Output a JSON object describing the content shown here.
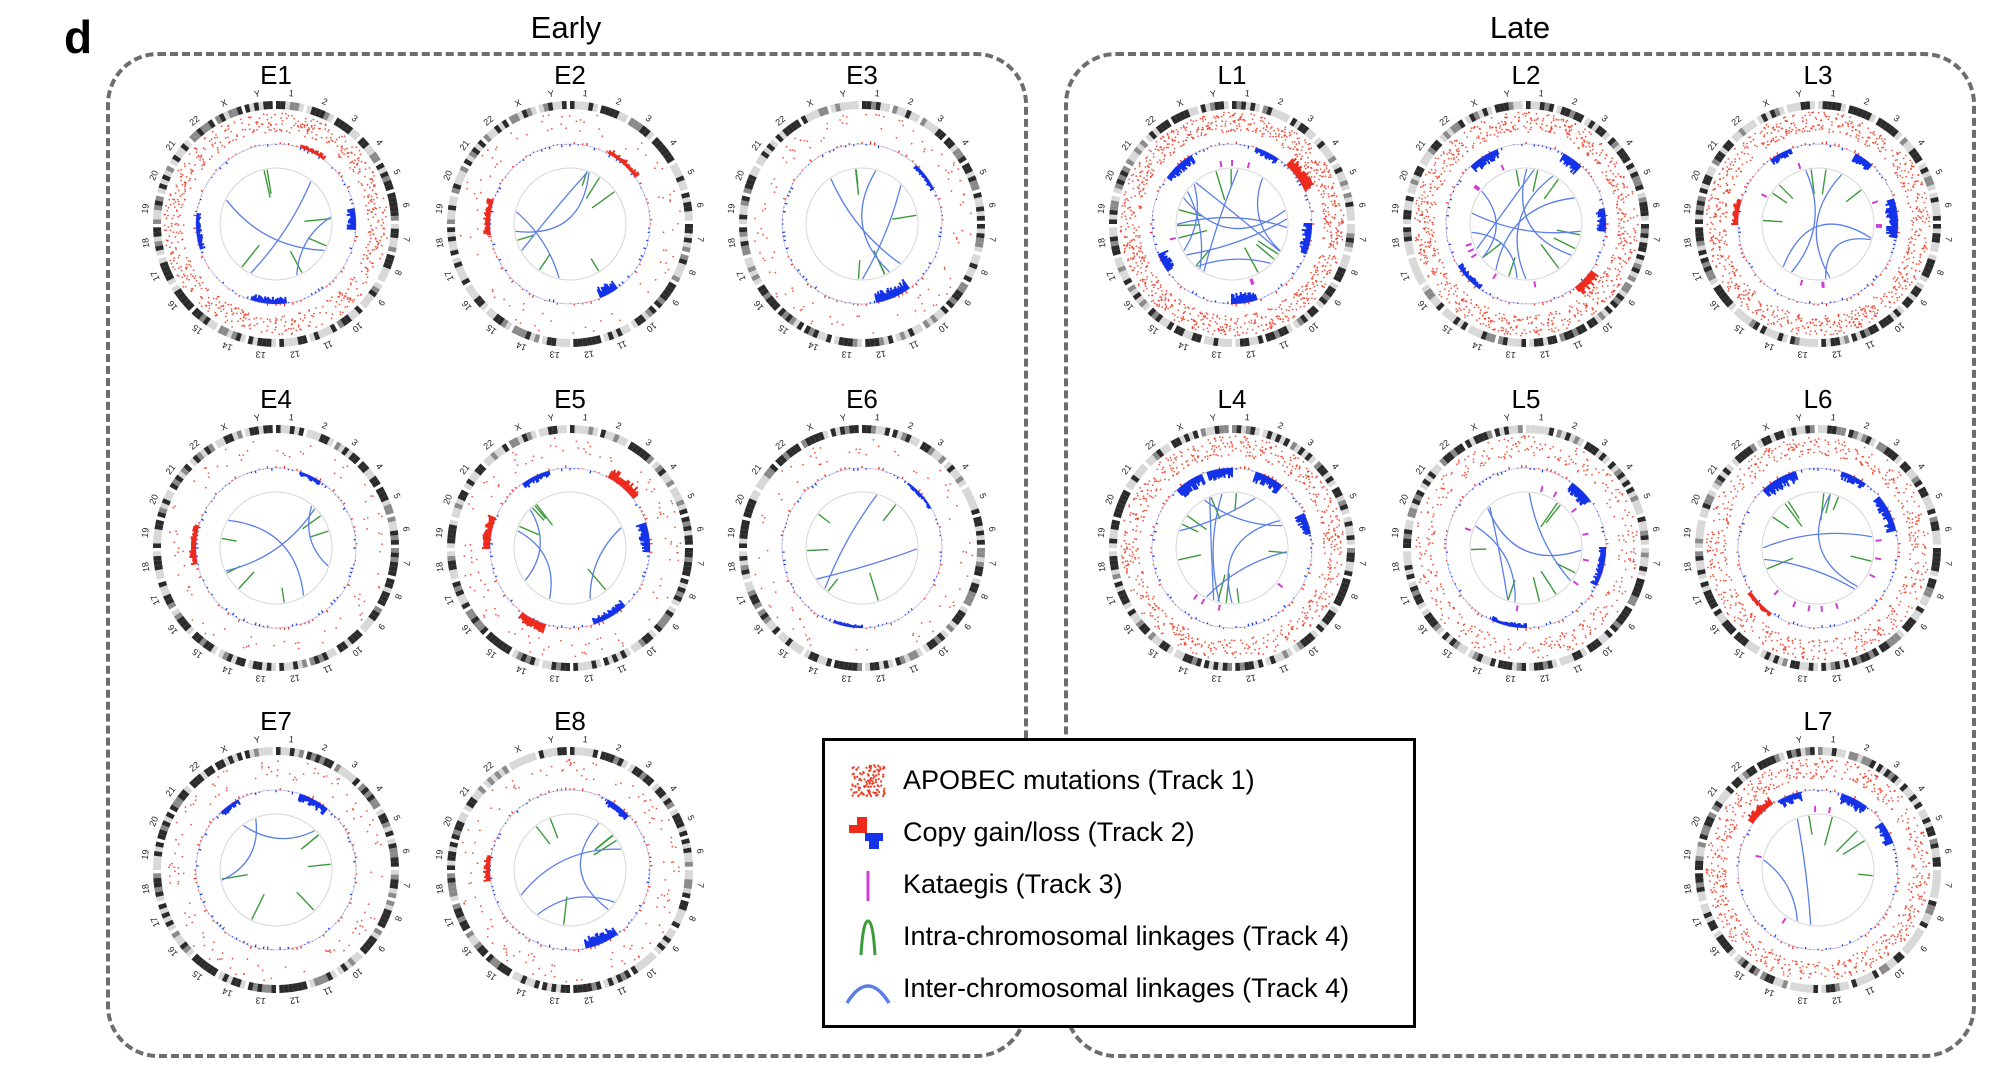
{
  "figure": {
    "panel_letter": "d",
    "groups": [
      {
        "title": "Early",
        "plots": [
          {
            "label": "E1",
            "density": 0.7,
            "cnv": [
              [
                5,
                "gain",
                0.4
              ],
              [
                22,
                "loss",
                0.8
              ],
              [
                48,
                "loss",
                0.6
              ],
              [
                70,
                "loss",
                0.5
              ]
            ],
            "kataegis": 0,
            "intra": 6,
            "inter": 3
          },
          {
            "label": "E2",
            "density": 0.05,
            "cnv": [
              [
                8,
                "gain",
                0.5
              ],
              [
                40,
                "loss",
                1.0
              ],
              [
                73,
                "gain",
                0.6
              ]
            ],
            "kataegis": 0,
            "intra": 6,
            "inter": 3
          },
          {
            "label": "E3",
            "density": 0.08,
            "cnv": [
              [
                12,
                "loss",
                0.4
              ],
              [
                40,
                "loss",
                1.0
              ]
            ],
            "kataegis": 0,
            "intra": 6,
            "inter": 3
          },
          {
            "label": "E4",
            "density": 0.05,
            "cnv": [
              [
                5,
                "loss",
                0.4
              ],
              [
                72,
                "gain",
                0.6
              ]
            ],
            "kataegis": 0,
            "intra": 6,
            "inter": 3
          },
          {
            "label": "E5",
            "density": 0.08,
            "cnv": [
              [
                8,
                "gain",
                1.0
              ],
              [
                20,
                "loss",
                0.9
              ],
              [
                38,
                "loss",
                0.7
              ],
              [
                55,
                "gain",
                0.8
              ],
              [
                75,
                "gain",
                0.7
              ],
              [
                90,
                "loss",
                0.6
              ]
            ],
            "kataegis": 0,
            "intra": 5,
            "inter": 3
          },
          {
            "label": "E6",
            "density": 0.04,
            "cnv": [
              [
                10,
                "loss",
                0.3
              ],
              [
                50,
                "loss",
                0.3
              ]
            ],
            "kataegis": 0,
            "intra": 5,
            "inter": 2
          },
          {
            "label": "E7",
            "density": 0.1,
            "cnv": [
              [
                5,
                "loss",
                0.7
              ],
              [
                88,
                "loss",
                0.5
              ]
            ],
            "kataegis": 0,
            "intra": 6,
            "inter": 2
          },
          {
            "label": "E8",
            "density": 0.1,
            "cnv": [
              [
                8,
                "loss",
                0.6
              ],
              [
                40,
                "loss",
                1.0
              ],
              [
                73,
                "gain",
                0.6
              ]
            ],
            "kataegis": 0,
            "intra": 6,
            "inter": 3
          }
        ]
      },
      {
        "title": "Late",
        "plots": [
          {
            "label": "L1",
            "density": 1.0,
            "cnv": [
              [
                5,
                "loss",
                0.6
              ],
              [
                12,
                "gain",
                1.0
              ],
              [
                25,
                "loss",
                0.9
              ],
              [
                45,
                "loss",
                1.0
              ],
              [
                65,
                "loss",
                0.9
              ],
              [
                85,
                "loss",
                0.8
              ]
            ],
            "kataegis": 6,
            "intra": 9,
            "inter": 9
          },
          {
            "label": "L2",
            "density": 0.85,
            "cnv": [
              [
                8,
                "loss",
                1.0
              ],
              [
                22,
                "loss",
                0.8
              ],
              [
                35,
                "gain",
                1.0
              ],
              [
                60,
                "loss",
                0.5
              ],
              [
                88,
                "loss",
                0.9
              ]
            ],
            "kataegis": 8,
            "intra": 8,
            "inter": 7
          },
          {
            "label": "L3",
            "density": 0.85,
            "cnv": [
              [
                8,
                "loss",
                0.8
              ],
              [
                20,
                "loss",
                1.0
              ],
              [
                75,
                "gain",
                0.6
              ],
              [
                90,
                "loss",
                0.6
              ]
            ],
            "kataegis": 8,
            "intra": 6,
            "inter": 4
          },
          {
            "label": "L4",
            "density": 0.7,
            "cnv": [
              [
                5,
                "loss",
                1.0
              ],
              [
                18,
                "loss",
                0.9
              ],
              [
                88,
                "loss",
                1.0
              ],
              [
                95,
                "loss",
                0.9
              ]
            ],
            "kataegis": 4,
            "intra": 9,
            "inter": 6
          },
          {
            "label": "L5",
            "density": 0.4,
            "cnv": [
              [
                10,
                "loss",
                1.0
              ],
              [
                25,
                "loss",
                0.6
              ],
              [
                50,
                "loss",
                0.4
              ]
            ],
            "kataegis": 8,
            "intra": 7,
            "inter": 4
          },
          {
            "label": "L6",
            "density": 0.6,
            "cnv": [
              [
                5,
                "loss",
                0.7
              ],
              [
                14,
                "loss",
                0.9
              ],
              [
                88,
                "loss",
                1.0
              ],
              [
                60,
                "gain",
                0.4
              ]
            ],
            "kataegis": 8,
            "intra": 8,
            "inter": 3
          },
          {
            "label": "L7",
            "density": 0.7,
            "cnv": [
              [
                5,
                "loss",
                0.9
              ],
              [
                15,
                "loss",
                0.9
              ],
              [
                85,
                "gain",
                0.8
              ],
              [
                92,
                "loss",
                0.8
              ]
            ],
            "kataegis": 4,
            "intra": 5,
            "inter": 2
          }
        ]
      }
    ],
    "chromosomes": [
      "1",
      "2",
      "3",
      "4",
      "5",
      "6",
      "7",
      "8",
      "9",
      "10",
      "11",
      "12",
      "13",
      "14",
      "15",
      "16",
      "17",
      "18",
      "19",
      "20",
      "21",
      "22",
      "X",
      "Y"
    ],
    "colors": {
      "apobec": "#ee3b24",
      "gain": "#ee2a1c",
      "loss": "#1432e8",
      "kataegis": "#cf3fd6",
      "intra": "#3c9a3c",
      "inter": "#5a7ee8",
      "box": "#6d6d6d"
    },
    "legend": [
      {
        "icon": "apobec-icon",
        "label": "APOBEC mutations (Track 1)"
      },
      {
        "icon": "copy-gain-loss-icon",
        "label": "Copy gain/loss (Track 2)"
      },
      {
        "icon": "kataegis-icon",
        "label": "Kataegis (Track 3)"
      },
      {
        "icon": "intra-linkage-icon",
        "label": "Intra-chromosomal linkages (Track 4)"
      },
      {
        "icon": "inter-linkage-icon",
        "label": "Inter-chromosomal linkages (Track 4)"
      }
    ]
  }
}
